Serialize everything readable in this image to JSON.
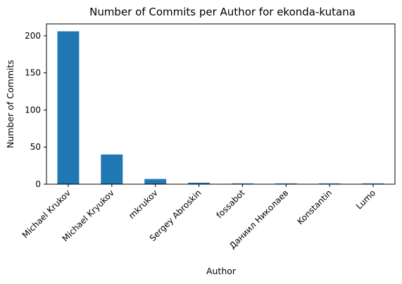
{
  "chart_data": {
    "type": "bar",
    "title": "Number of Commits per Author for ekonda-kutana",
    "xlabel": "Author",
    "ylabel": "Number of Commits",
    "categories": [
      "Michael Krukov",
      "Michael Kryukov",
      "mkrukov",
      "Sergey Abroskin",
      "fossabot",
      "Даниил Николаев",
      "Konstantin",
      "Lumo"
    ],
    "values": [
      206,
      40,
      7,
      2,
      1,
      1,
      1,
      1
    ],
    "ylim": [
      0,
      216
    ],
    "yticks": [
      0,
      50,
      100,
      150,
      200
    ],
    "bar_color": "#1f77b4",
    "grid": false,
    "legend": "none"
  }
}
